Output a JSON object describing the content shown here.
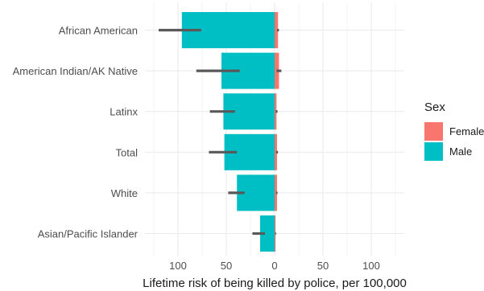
{
  "chart_data": {
    "type": "bar",
    "orientation": "horizontal-diverging",
    "categories": [
      "African American",
      "American Indian/AK Native",
      "Latinx",
      "Total",
      "White",
      "Asian/Pacific Islander"
    ],
    "xlabel": "Lifetime risk of being killed by police, per 100,000",
    "x_ticks": [
      100,
      50,
      0,
      50,
      100
    ],
    "xlim": [
      -125,
      125
    ],
    "grid": true,
    "legend": {
      "title": "Sex",
      "position": "right",
      "entries": [
        {
          "label": "Female",
          "color": "#F8766D"
        },
        {
          "label": "Male",
          "color": "#00BFC4"
        }
      ]
    },
    "series": [
      {
        "name": "Male",
        "color": "#00BFC4",
        "direction": "left",
        "values": [
          96,
          55,
          53,
          52,
          39,
          15
        ],
        "error_low": [
          76,
          36,
          41,
          39,
          31,
          10
        ],
        "error_high": [
          120,
          81,
          67,
          68,
          48,
          23
        ]
      },
      {
        "name": "Female",
        "color": "#F8766D",
        "direction": "right",
        "values": [
          3.5,
          4.5,
          2,
          2.5,
          2.5,
          1
        ],
        "error_low": [
          2.5,
          2,
          1,
          1.5,
          1.5,
          0.5
        ],
        "error_high": [
          4.5,
          7,
          3,
          3.5,
          3,
          1.5
        ]
      }
    ],
    "error_bar_color": "#595959"
  }
}
